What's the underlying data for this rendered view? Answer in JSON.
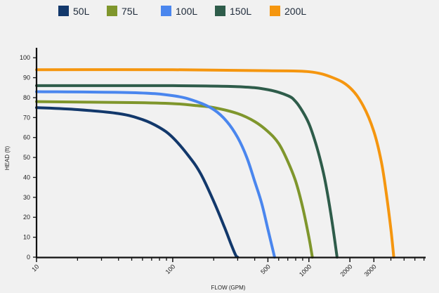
{
  "chart_data": {
    "type": "line",
    "title": "",
    "xlabel": "FLOW (GPM)",
    "ylabel": "HEAD (ft)",
    "x_scale": "log",
    "xlim": [
      10,
      7200
    ],
    "ylim": [
      0,
      105
    ],
    "x_tick_labels": [
      {
        "value": 10,
        "label": "10"
      },
      {
        "value": 100,
        "label": "100"
      },
      {
        "value": 500,
        "label": "500"
      },
      {
        "value": 1000,
        "label": "1000"
      },
      {
        "value": 2000,
        "label": "2000"
      },
      {
        "value": 3000,
        "label": "3000"
      }
    ],
    "x_minor_ticks": [
      20,
      30,
      40,
      50,
      60,
      70,
      80,
      90,
      200,
      300,
      400,
      600,
      700,
      800,
      900,
      4000,
      5000,
      6000,
      7000
    ],
    "y_ticks": [
      0,
      10,
      20,
      30,
      40,
      50,
      60,
      70,
      80,
      90,
      100
    ],
    "grid": false,
    "legend_position": "top",
    "series": [
      {
        "name": "50L",
        "color": "#12386b",
        "x": [
          10,
          20,
          40,
          60,
          80,
          100,
          130,
          160,
          200,
          240,
          270,
          290,
          300
        ],
        "y": [
          75,
          74,
          72,
          69,
          65,
          60,
          51,
          42,
          28,
          15,
          6,
          1,
          0
        ]
      },
      {
        "name": "75L",
        "color": "#7f962c",
        "x": [
          10,
          50,
          100,
          150,
          200,
          300,
          400,
          500,
          600,
          700,
          800,
          900,
          1000,
          1060
        ],
        "y": [
          78,
          77.5,
          77,
          76,
          75,
          72,
          68,
          63,
          57,
          48,
          38,
          25,
          10,
          0
        ]
      },
      {
        "name": "100L",
        "color": "#4a86ee",
        "x": [
          10,
          50,
          100,
          150,
          200,
          250,
          300,
          350,
          400,
          450,
          500,
          560
        ],
        "y": [
          83,
          82.5,
          81,
          78,
          74,
          68,
          60,
          50,
          38,
          27,
          14,
          0
        ]
      },
      {
        "name": "150L",
        "color": "#2e5c4a",
        "x": [
          10,
          100,
          300,
          500,
          700,
          800,
          900,
          1000,
          1100,
          1200,
          1300,
          1400,
          1500,
          1610
        ],
        "y": [
          86,
          86,
          85.5,
          84,
          81,
          78,
          73,
          67,
          59,
          50,
          40,
          28,
          15,
          0
        ]
      },
      {
        "name": "200L",
        "color": "#f5960f",
        "x": [
          10,
          100,
          500,
          1000,
          1500,
          2000,
          2500,
          3000,
          3400,
          3700,
          4000,
          4200
        ],
        "y": [
          94,
          94,
          93.5,
          93,
          90,
          85,
          76,
          63,
          48,
          32,
          14,
          0
        ]
      }
    ]
  }
}
